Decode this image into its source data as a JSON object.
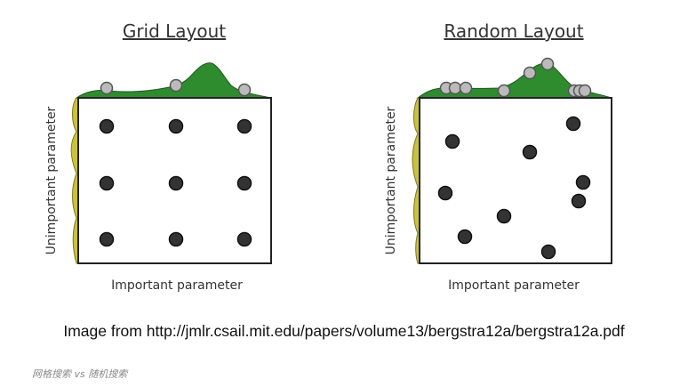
{
  "panels": [
    {
      "title": "Grid Layout",
      "xlabel": "Important parameter",
      "ylabel": "Unimportant parameter"
    },
    {
      "title": "Random Layout",
      "xlabel": "Important parameter",
      "ylabel": "Unimportant parameter"
    }
  ],
  "source_text": "Image from http://jmlr.csail.mit.edu/papers/volume13/bergstra12a/bergstra12a.pdf",
  "caption": "网格搜索 vs 随机搜索",
  "colors": {
    "important_distribution": "#2e8b2e",
    "unimportant_distribution": "#c9c23a",
    "sample_point": "#333333",
    "projected_point": "#bbbbbb"
  }
}
